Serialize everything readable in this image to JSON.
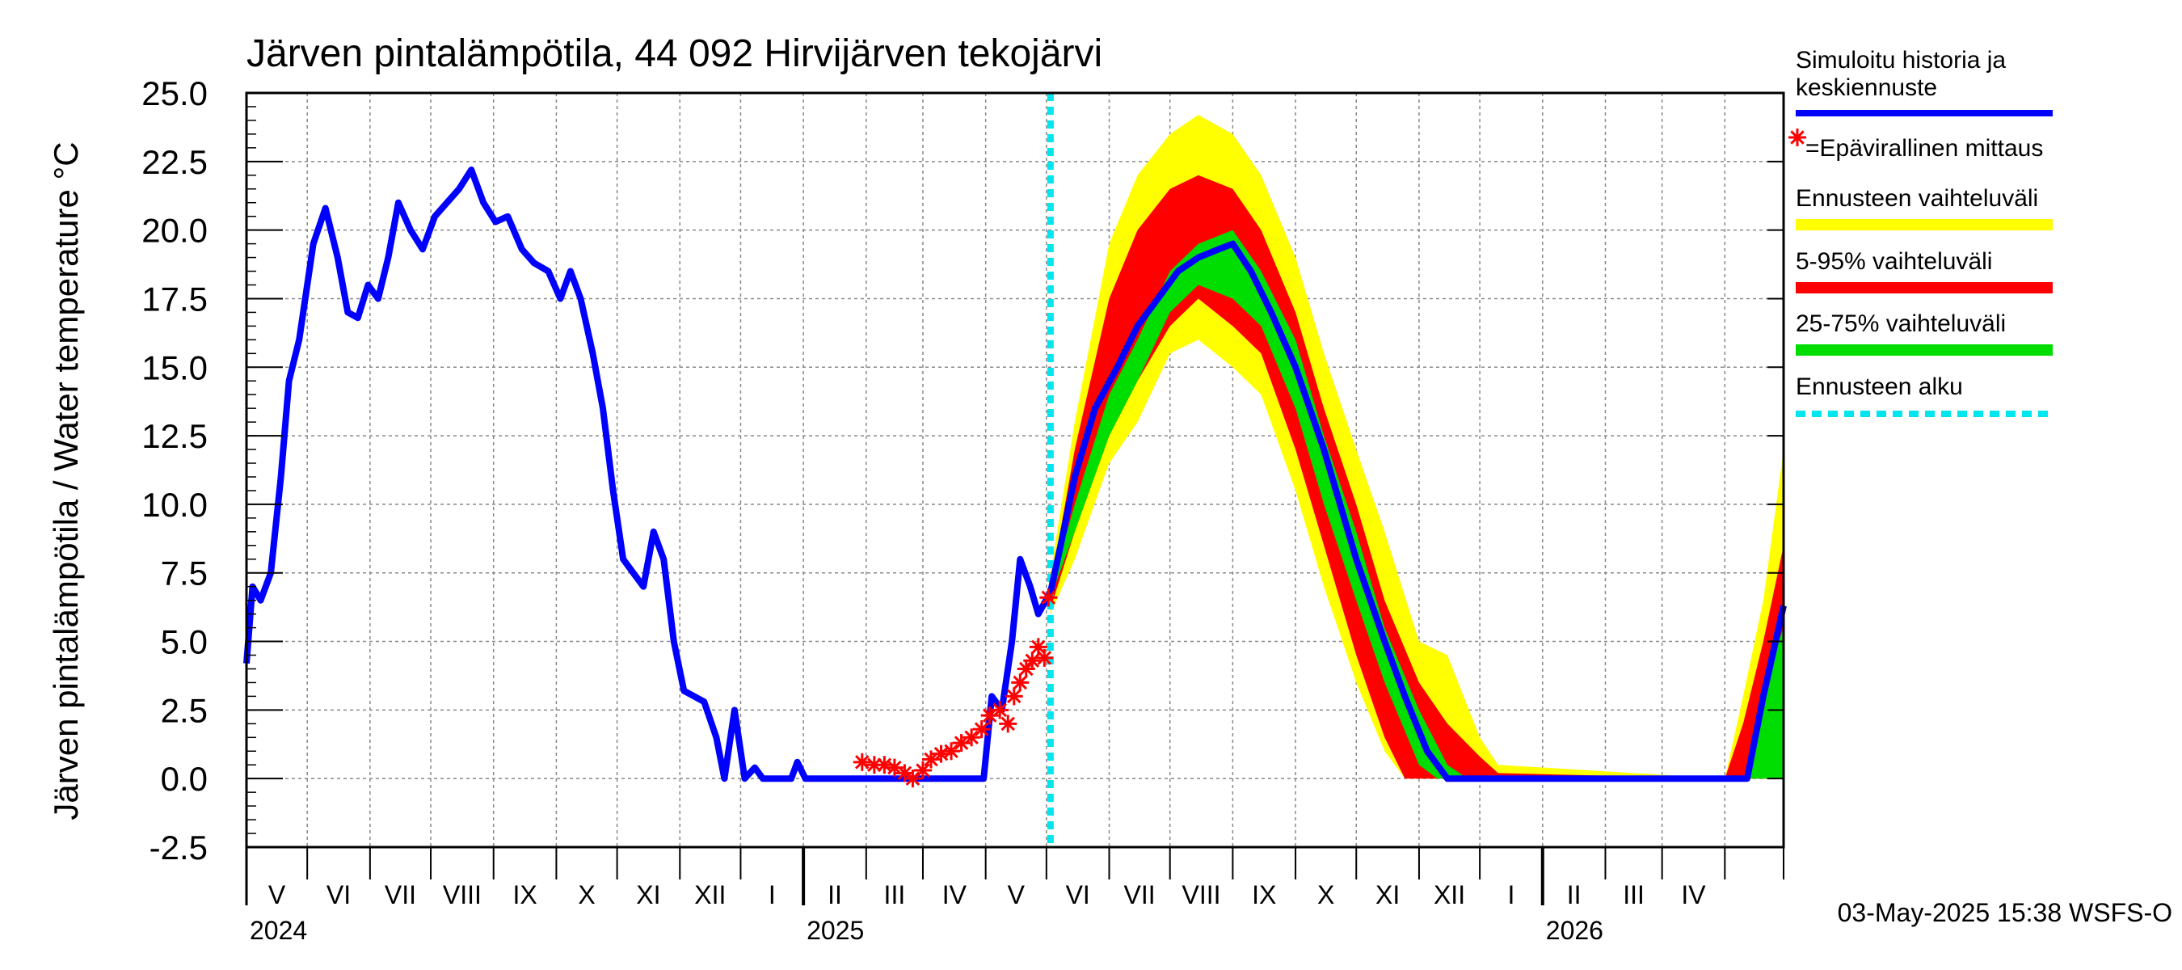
{
  "chart_data": {
    "type": "line",
    "title": "Järven pintalämpötila, 44 092 Hirvijärven tekojärvi",
    "ylabel": "Järven pintalämpötila / Water temperature °C",
    "ylim": [
      -2.5,
      25.0
    ],
    "yticks": [
      "25.0",
      "22.5",
      "20.0",
      "17.5",
      "15.0",
      "12.5",
      "10.0",
      "7.5",
      "5.0",
      "2.5",
      "0.0",
      "-2.5"
    ],
    "grid": true,
    "legend_position": "right",
    "x_range": [
      "2024-04-01",
      "2026-04-30"
    ],
    "forecast_start": "2025-05-03",
    "month_labels": [
      "V",
      "VI",
      "VII",
      "VIII",
      "IX",
      "X",
      "XI",
      "XII",
      "I",
      "II",
      "III",
      "IV",
      "V",
      "VI",
      "VII",
      "VIII",
      "IX",
      "X",
      "XI",
      "XII",
      "I",
      "II",
      "III",
      "IV"
    ],
    "year_labels": [
      {
        "label": "2024",
        "date": "2024-04-01"
      },
      {
        "label": "2025",
        "date": "2025-01-01"
      },
      {
        "label": "2026",
        "date": "2026-01-01"
      }
    ],
    "footer": "03-May-2025 15:38 WSFS-O",
    "legend": [
      {
        "label": "Simuloitu historia ja keskiennuste",
        "color": "#0000ff",
        "kind": "line"
      },
      {
        "label": "=Epävirallinen mittaus",
        "color": "#ff0000",
        "kind": "star"
      },
      {
        "label": "Ennusteen vaihteluväli",
        "color": "#ffff00",
        "kind": "band"
      },
      {
        "label": "5-95% vaihteluväli",
        "color": "#ff0000",
        "kind": "band"
      },
      {
        "label": "25-75% vaihteluväli",
        "color": "#00dd00",
        "kind": "band"
      },
      {
        "label": "Ennusteen alku",
        "color": "#00e5ee",
        "kind": "dash"
      }
    ],
    "colors": {
      "history": "#0000ff",
      "measurement": "#ff0000",
      "range_full": "#ffff00",
      "range_5_95": "#ff0000",
      "range_25_75": "#00dd00",
      "forecast_start": "#00e5ee"
    },
    "series": [
      {
        "name": "Simuloitu historia ja keskiennuste",
        "points": [
          [
            "2024-04-01",
            4.2
          ],
          [
            "2024-04-04",
            7.0
          ],
          [
            "2024-04-08",
            6.5
          ],
          [
            "2024-04-13",
            7.5
          ],
          [
            "2024-04-18",
            11.0
          ],
          [
            "2024-04-22",
            14.5
          ],
          [
            "2024-04-27",
            16.0
          ],
          [
            "2024-05-04",
            19.5
          ],
          [
            "2024-05-10",
            20.8
          ],
          [
            "2024-05-16",
            19.0
          ],
          [
            "2024-05-21",
            17.0
          ],
          [
            "2024-05-26",
            16.8
          ],
          [
            "2024-05-31",
            18.0
          ],
          [
            "2024-06-05",
            17.5
          ],
          [
            "2024-06-10",
            19.0
          ],
          [
            "2024-06-15",
            21.0
          ],
          [
            "2024-06-21",
            20.0
          ],
          [
            "2024-06-27",
            19.3
          ],
          [
            "2024-07-03",
            20.5
          ],
          [
            "2024-07-09",
            21.0
          ],
          [
            "2024-07-15",
            21.5
          ],
          [
            "2024-07-21",
            22.2
          ],
          [
            "2024-07-27",
            21.0
          ],
          [
            "2024-08-02",
            20.3
          ],
          [
            "2024-08-08",
            20.5
          ],
          [
            "2024-08-15",
            19.3
          ],
          [
            "2024-08-21",
            18.8
          ],
          [
            "2024-08-28",
            18.5
          ],
          [
            "2024-09-03",
            17.5
          ],
          [
            "2024-09-08",
            18.5
          ],
          [
            "2024-09-13",
            17.5
          ],
          [
            "2024-09-19",
            15.5
          ],
          [
            "2024-09-24",
            13.5
          ],
          [
            "2024-09-29",
            10.5
          ],
          [
            "2024-10-04",
            8.0
          ],
          [
            "2024-10-09",
            7.5
          ],
          [
            "2024-10-14",
            7.0
          ],
          [
            "2024-10-19",
            9.0
          ],
          [
            "2024-10-24",
            8.0
          ],
          [
            "2024-10-29",
            5.0
          ],
          [
            "2024-11-03",
            3.2
          ],
          [
            "2024-11-08",
            3.0
          ],
          [
            "2024-11-13",
            2.8
          ],
          [
            "2024-11-19",
            1.5
          ],
          [
            "2024-11-23",
            0.0
          ],
          [
            "2024-11-28",
            2.5
          ],
          [
            "2024-12-03",
            0.0
          ],
          [
            "2024-12-08",
            0.4
          ],
          [
            "2024-12-12",
            0.0
          ],
          [
            "2024-12-26",
            0.0
          ],
          [
            "2024-12-29",
            0.6
          ],
          [
            "2025-01-02",
            0.0
          ],
          [
            "2025-03-31",
            0.0
          ],
          [
            "2025-04-04",
            3.0
          ],
          [
            "2025-04-09",
            2.5
          ],
          [
            "2025-04-14",
            5.0
          ],
          [
            "2025-04-18",
            8.0
          ],
          [
            "2025-04-23",
            7.0
          ],
          [
            "2025-04-27",
            6.0
          ],
          [
            "2025-05-03",
            6.8
          ],
          [
            "2025-05-08",
            8.5
          ],
          [
            "2025-05-15",
            11.0
          ],
          [
            "2025-05-25",
            13.5
          ],
          [
            "2025-06-05",
            15.0
          ],
          [
            "2025-06-15",
            16.5
          ],
          [
            "2025-06-25",
            17.5
          ],
          [
            "2025-07-05",
            18.5
          ],
          [
            "2025-07-15",
            19.0
          ],
          [
            "2025-07-25",
            19.3
          ],
          [
            "2025-08-01",
            19.5
          ],
          [
            "2025-08-10",
            18.5
          ],
          [
            "2025-08-20",
            17.0
          ],
          [
            "2025-09-01",
            15.0
          ],
          [
            "2025-09-15",
            12.0
          ],
          [
            "2025-10-01",
            8.0
          ],
          [
            "2025-10-15",
            5.0
          ],
          [
            "2025-10-25",
            3.0
          ],
          [
            "2025-11-05",
            1.0
          ],
          [
            "2025-11-15",
            0.0
          ],
          [
            "2026-04-12",
            0.0
          ],
          [
            "2026-04-20",
            3.0
          ],
          [
            "2026-04-30",
            6.3
          ]
        ]
      },
      {
        "name": "=Epävirallinen mittaus",
        "points": [
          [
            "2025-01-30",
            0.6
          ],
          [
            "2025-02-05",
            0.5
          ],
          [
            "2025-02-10",
            0.5
          ],
          [
            "2025-02-15",
            0.4
          ],
          [
            "2025-02-20",
            0.2
          ],
          [
            "2025-02-24",
            0.0
          ],
          [
            "2025-03-01",
            0.3
          ],
          [
            "2025-03-05",
            0.7
          ],
          [
            "2025-03-10",
            0.9
          ],
          [
            "2025-03-15",
            1.0
          ],
          [
            "2025-03-20",
            1.3
          ],
          [
            "2025-03-25",
            1.5
          ],
          [
            "2025-03-30",
            1.8
          ],
          [
            "2025-04-03",
            2.3
          ],
          [
            "2025-04-08",
            2.5
          ],
          [
            "2025-04-12",
            2.0
          ],
          [
            "2025-04-15",
            3.0
          ],
          [
            "2025-04-18",
            3.5
          ],
          [
            "2025-04-21",
            4.0
          ],
          [
            "2025-04-24",
            4.3
          ],
          [
            "2025-04-27",
            4.8
          ],
          [
            "2025-04-30",
            4.4
          ],
          [
            "2025-05-02",
            6.6
          ]
        ]
      }
    ],
    "bands": [
      {
        "name": "Ennusteen vaihteluväli",
        "upper": [
          [
            "2025-05-03",
            7.5
          ],
          [
            "2025-05-15",
            13.0
          ],
          [
            "2025-06-01",
            19.5
          ],
          [
            "2025-06-15",
            22.0
          ],
          [
            "2025-07-01",
            23.5
          ],
          [
            "2025-07-15",
            24.2
          ],
          [
            "2025-08-01",
            23.5
          ],
          [
            "2025-08-15",
            22.0
          ],
          [
            "2025-09-01",
            19.0
          ],
          [
            "2025-09-15",
            15.5
          ],
          [
            "2025-10-01",
            12.0
          ],
          [
            "2025-10-15",
            9.0
          ],
          [
            "2025-11-01",
            5.0
          ],
          [
            "2025-11-15",
            4.5
          ],
          [
            "2025-12-01",
            1.5
          ],
          [
            "2025-12-10",
            0.5
          ],
          [
            "2026-04-01",
            0.0
          ],
          [
            "2026-04-10",
            3.0
          ],
          [
            "2026-04-20",
            6.5
          ],
          [
            "2026-04-30",
            12.0
          ]
        ],
        "lower": [
          [
            "2025-05-03",
            6.0
          ],
          [
            "2025-05-15",
            8.0
          ],
          [
            "2025-06-01",
            11.5
          ],
          [
            "2025-06-15",
            13.0
          ],
          [
            "2025-07-01",
            15.5
          ],
          [
            "2025-07-15",
            16.0
          ],
          [
            "2025-08-01",
            15.0
          ],
          [
            "2025-08-15",
            14.0
          ],
          [
            "2025-09-01",
            10.5
          ],
          [
            "2025-09-15",
            7.0
          ],
          [
            "2025-10-01",
            3.5
          ],
          [
            "2025-10-15",
            1.0
          ],
          [
            "2025-10-25",
            0.0
          ],
          [
            "2026-04-30",
            0.0
          ]
        ]
      },
      {
        "name": "5-95% vaihteluväli",
        "upper": [
          [
            "2025-05-03",
            7.0
          ],
          [
            "2025-05-15",
            12.0
          ],
          [
            "2025-06-01",
            17.5
          ],
          [
            "2025-06-15",
            20.0
          ],
          [
            "2025-07-01",
            21.5
          ],
          [
            "2025-07-15",
            22.0
          ],
          [
            "2025-08-01",
            21.5
          ],
          [
            "2025-08-15",
            20.0
          ],
          [
            "2025-09-01",
            17.0
          ],
          [
            "2025-09-15",
            13.5
          ],
          [
            "2025-10-01",
            10.0
          ],
          [
            "2025-10-15",
            6.5
          ],
          [
            "2025-11-01",
            3.5
          ],
          [
            "2025-11-15",
            2.0
          ],
          [
            "2025-12-01",
            0.8
          ],
          [
            "2025-12-10",
            0.2
          ],
          [
            "2026-04-01",
            0.0
          ],
          [
            "2026-04-10",
            2.0
          ],
          [
            "2026-04-20",
            5.0
          ],
          [
            "2026-04-30",
            8.5
          ]
        ],
        "lower": [
          [
            "2025-05-03",
            6.2
          ],
          [
            "2025-05-15",
            9.0
          ],
          [
            "2025-06-01",
            12.5
          ],
          [
            "2025-06-15",
            14.5
          ],
          [
            "2025-07-01",
            16.5
          ],
          [
            "2025-07-15",
            17.5
          ],
          [
            "2025-08-01",
            16.5
          ],
          [
            "2025-08-15",
            15.5
          ],
          [
            "2025-09-01",
            12.0
          ],
          [
            "2025-09-15",
            8.5
          ],
          [
            "2025-10-01",
            4.5
          ],
          [
            "2025-10-15",
            1.5
          ],
          [
            "2025-10-25",
            0.0
          ],
          [
            "2026-04-30",
            0.0
          ]
        ]
      },
      {
        "name": "25-75% vaihteluväli",
        "upper": [
          [
            "2025-05-03",
            6.9
          ],
          [
            "2025-05-15",
            10.0
          ],
          [
            "2025-06-01",
            14.0
          ],
          [
            "2025-06-15",
            16.0
          ],
          [
            "2025-07-01",
            18.5
          ],
          [
            "2025-07-15",
            19.5
          ],
          [
            "2025-08-01",
            20.0
          ],
          [
            "2025-08-15",
            18.5
          ],
          [
            "2025-09-01",
            16.0
          ],
          [
            "2025-09-15",
            12.5
          ],
          [
            "2025-10-01",
            9.0
          ],
          [
            "2025-10-15",
            5.5
          ],
          [
            "2025-11-01",
            2.5
          ],
          [
            "2025-11-15",
            0.5
          ],
          [
            "2025-11-25",
            0.0
          ],
          [
            "2026-04-12",
            0.0
          ],
          [
            "2026-04-20",
            3.5
          ],
          [
            "2026-04-30",
            5.5
          ]
        ],
        "lower": [
          [
            "2025-05-03",
            6.6
          ],
          [
            "2025-05-15",
            9.0
          ],
          [
            "2025-06-01",
            12.5
          ],
          [
            "2025-06-15",
            14.5
          ],
          [
            "2025-07-01",
            17.0
          ],
          [
            "2025-07-15",
            18.0
          ],
          [
            "2025-08-01",
            17.5
          ],
          [
            "2025-08-15",
            16.5
          ],
          [
            "2025-09-01",
            13.5
          ],
          [
            "2025-09-15",
            10.0
          ],
          [
            "2025-10-01",
            6.5
          ],
          [
            "2025-10-15",
            3.5
          ],
          [
            "2025-11-01",
            0.5
          ],
          [
            "2025-11-10",
            0.0
          ],
          [
            "2026-04-30",
            0.0
          ]
        ]
      }
    ]
  }
}
